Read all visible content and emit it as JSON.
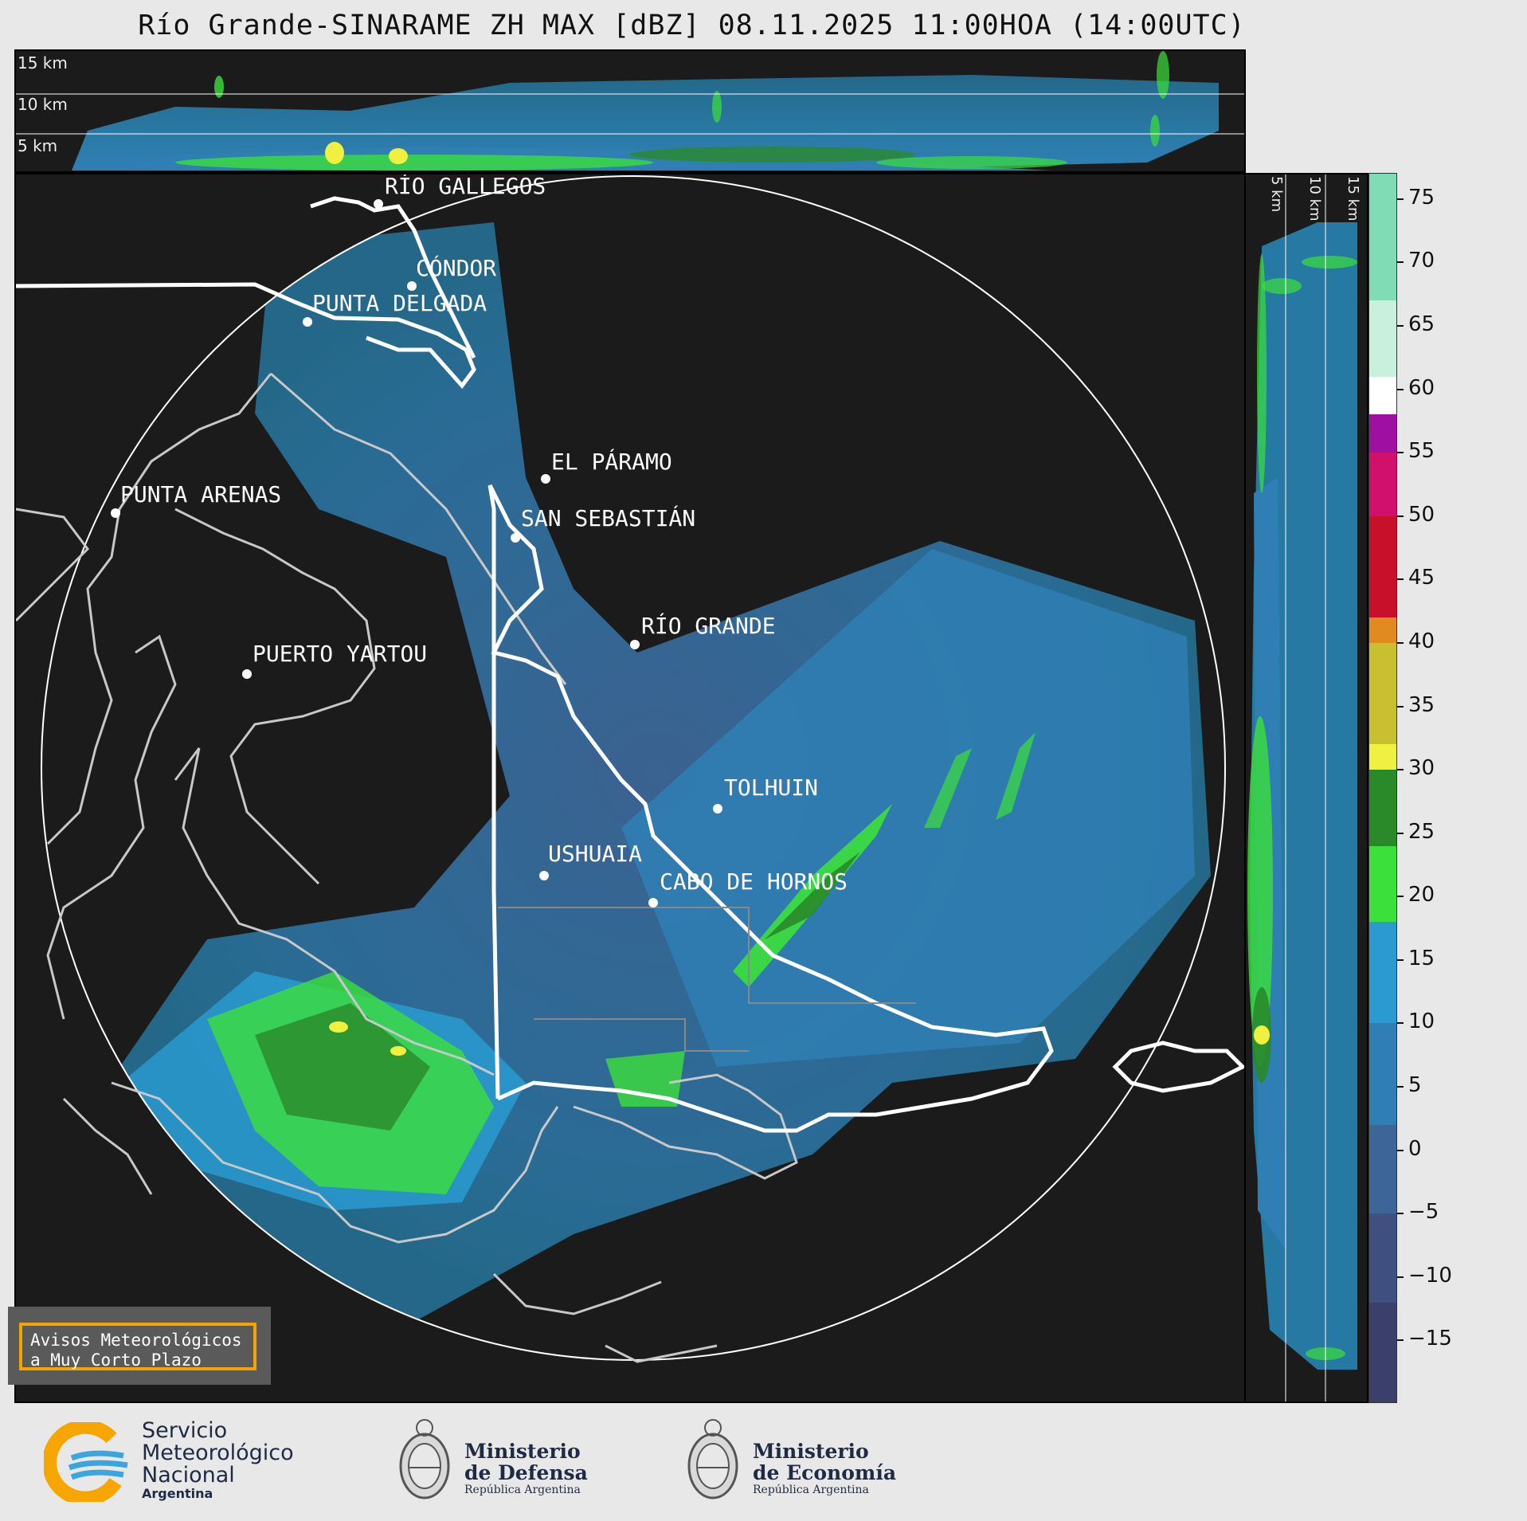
{
  "title": "Río Grande-SINARAME ZH MAX [dBZ] 08.11.2025 11:00HOA (14:00UTC)",
  "top_panel": {
    "altitude_labels": [
      "15 km",
      "10 km",
      "5 km"
    ]
  },
  "side_panel": {
    "altitude_labels": [
      "5 km",
      "10 km",
      "15 km"
    ]
  },
  "cities": [
    {
      "name": "RÍO GALLEGOS",
      "id": "rio-gallegos"
    },
    {
      "name": "CÓNDOR",
      "id": "condor"
    },
    {
      "name": "PUNTA DELGADA",
      "id": "punta-delgada"
    },
    {
      "name": "PUNTA ARENAS",
      "id": "punta-arenas"
    },
    {
      "name": "EL PÁRAMO",
      "id": "el-paramo"
    },
    {
      "name": "SAN SEBASTIÁN",
      "id": "san-sebastian"
    },
    {
      "name": "RÍO GRANDE",
      "id": "rio-grande"
    },
    {
      "name": "PUERTO YARTOU",
      "id": "puerto-yartou"
    },
    {
      "name": "TOLHUIN",
      "id": "tolhuin"
    },
    {
      "name": "USHUAIA",
      "id": "ushuaia"
    },
    {
      "name": "CABO DE HORNOS",
      "id": "cabo-de-hornos"
    }
  ],
  "colorbar": {
    "unit": "dBZ",
    "ticks": [
      "75",
      "70",
      "65",
      "60",
      "55",
      "50",
      "45",
      "40",
      "35",
      "30",
      "25",
      "20",
      "15",
      "10",
      "5",
      "0",
      "−5",
      "−10",
      "−15"
    ],
    "tick_values": [
      75,
      70,
      65,
      60,
      55,
      50,
      45,
      40,
      35,
      30,
      25,
      20,
      15,
      10,
      5,
      0,
      -5,
      -10,
      -15
    ],
    "range": [
      -20,
      77
    ],
    "bands": [
      {
        "from": -20,
        "to": -12,
        "color": "#3b3f6b"
      },
      {
        "from": -12,
        "to": -5,
        "color": "#3f4f80"
      },
      {
        "from": -5,
        "to": 2,
        "color": "#3d6596"
      },
      {
        "from": 2,
        "to": 10,
        "color": "#2f7fb4"
      },
      {
        "from": 10,
        "to": 18,
        "color": "#2a9ad0"
      },
      {
        "from": 18,
        "to": 24,
        "color": "#3ce03a"
      },
      {
        "from": 24,
        "to": 30,
        "color": "#2a8a2a"
      },
      {
        "from": 30,
        "to": 32,
        "color": "#f0f040"
      },
      {
        "from": 32,
        "to": 40,
        "color": "#c8c030"
      },
      {
        "from": 40,
        "to": 42,
        "color": "#e08a20"
      },
      {
        "from": 42,
        "to": 50,
        "color": "#c8102a"
      },
      {
        "from": 50,
        "to": 55,
        "color": "#d0106a"
      },
      {
        "from": 55,
        "to": 58,
        "color": "#a010a0"
      },
      {
        "from": 58,
        "to": 61,
        "color": "#ffffff"
      },
      {
        "from": 61,
        "to": 67,
        "color": "#c8f0dc"
      },
      {
        "from": 67,
        "to": 77,
        "color": "#7fdcb4"
      }
    ]
  },
  "warning_box": {
    "line1": "Avisos Meteorológicos",
    "line2": "a Muy Corto Plazo",
    "border_color": "#f5a300"
  },
  "footer": {
    "smn": {
      "line1": "Servicio",
      "line2": "Meteorológico",
      "line3": "Nacional",
      "line4": "Argentina"
    },
    "defensa": {
      "line1": "Ministerio",
      "line2": "de Defensa",
      "line3": "República Argentina"
    },
    "economia": {
      "line1": "Ministerio",
      "line2": "de Economía",
      "line3": "República Argentina"
    }
  }
}
